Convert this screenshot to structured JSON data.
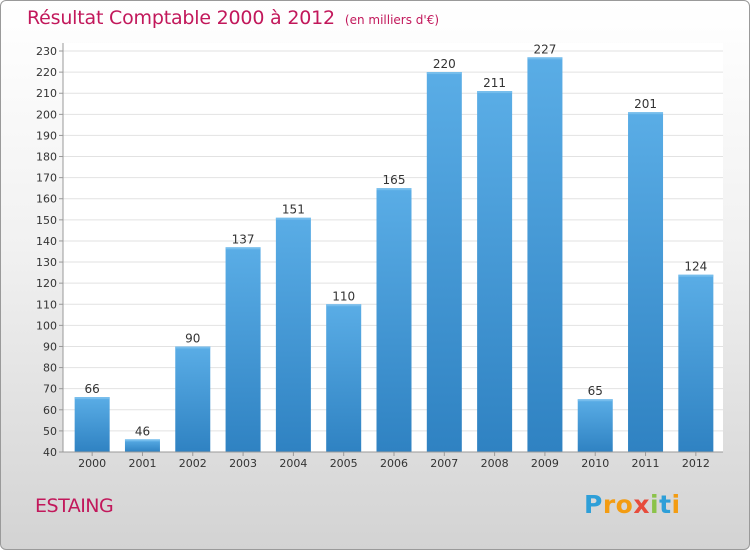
{
  "header": {
    "title": "Résultat Comptable 2000 à 2012",
    "unit": "(en milliers d'€)"
  },
  "commune": "ESTAING",
  "logo": {
    "letters": [
      "P",
      "r",
      "o",
      "x",
      "i",
      "t",
      "i"
    ]
  },
  "colors": {
    "accent": "#c2185b",
    "bar_top": "#5aade6",
    "bar_bottom": "#2f82c2",
    "grid": "#e2e2e2",
    "axis_text": "#333333"
  },
  "chart_data": {
    "type": "bar",
    "title": "Résultat Comptable 2000 à 2012",
    "ylabel": "(en milliers d'€)",
    "xlabel": "",
    "categories": [
      "2000",
      "2001",
      "2002",
      "2003",
      "2004",
      "2005",
      "2006",
      "2007",
      "2008",
      "2009",
      "2010",
      "2011",
      "2012"
    ],
    "values": [
      66,
      46,
      90,
      137,
      151,
      110,
      165,
      220,
      211,
      227,
      65,
      201,
      124
    ],
    "ylim": [
      40,
      230
    ],
    "yticks": [
      40,
      50,
      60,
      70,
      80,
      90,
      100,
      110,
      120,
      130,
      140,
      150,
      160,
      170,
      180,
      190,
      200,
      210,
      220,
      230
    ],
    "grid": true,
    "legend": "none"
  }
}
